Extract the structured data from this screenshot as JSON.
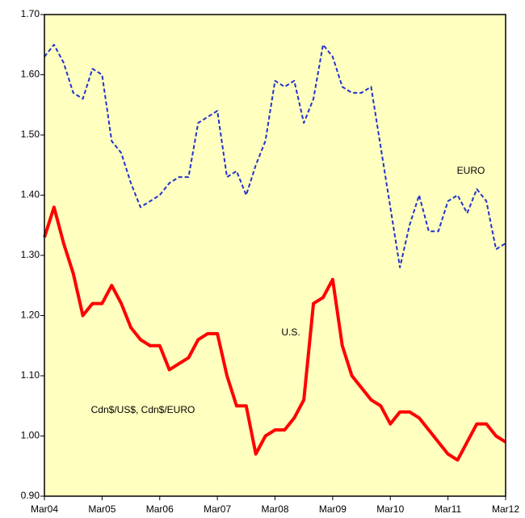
{
  "chart_data": {
    "type": "line",
    "categories": [
      "Mar04",
      null,
      null,
      null,
      null,
      null,
      "Mar05",
      null,
      null,
      null,
      null,
      null,
      "Mar06",
      null,
      null,
      null,
      null,
      null,
      "Mar07",
      null,
      null,
      null,
      null,
      null,
      "Mar08",
      null,
      null,
      null,
      null,
      null,
      "Mar09",
      null,
      null,
      null,
      null,
      null,
      "Mar10",
      null,
      null,
      null,
      null,
      null,
      "Mar11",
      null,
      null,
      null,
      null,
      null,
      "Mar12"
    ],
    "series": [
      {
        "name": "EURO",
        "color": "#2233cc",
        "dashed": true,
        "width": 2,
        "values": [
          1.63,
          1.65,
          1.62,
          1.57,
          1.56,
          1.61,
          1.6,
          1.49,
          1.47,
          1.42,
          1.38,
          1.39,
          1.4,
          1.42,
          1.43,
          1.43,
          1.52,
          1.53,
          1.54,
          1.43,
          1.44,
          1.4,
          1.45,
          1.49,
          1.59,
          1.58,
          1.59,
          1.52,
          1.56,
          1.65,
          1.63,
          1.58,
          1.57,
          1.57,
          1.58,
          1.48,
          1.38,
          1.28,
          1.35,
          1.4,
          1.34,
          1.34,
          1.39,
          1.4,
          1.37,
          1.41,
          1.39,
          1.31,
          1.32
        ]
      },
      {
        "name": "U.S.",
        "color": "#ff0000",
        "dashed": false,
        "width": 4,
        "values": [
          1.33,
          1.38,
          1.32,
          1.27,
          1.2,
          1.22,
          1.22,
          1.25,
          1.22,
          1.18,
          1.16,
          1.15,
          1.15,
          1.11,
          1.12,
          1.13,
          1.16,
          1.17,
          1.17,
          1.1,
          1.05,
          1.05,
          0.97,
          1.0,
          1.01,
          1.01,
          1.03,
          1.06,
          1.22,
          1.23,
          1.26,
          1.15,
          1.1,
          1.08,
          1.06,
          1.05,
          1.02,
          1.04,
          1.04,
          1.03,
          1.01,
          0.99,
          0.97,
          0.96,
          0.99,
          1.02,
          1.02,
          1.0,
          0.99
        ]
      }
    ],
    "annotations": [
      "EURO",
      "U.S.",
      "Cdn$/US$, Cdn$/EURO"
    ],
    "ylim": [
      0.9,
      1.7
    ],
    "yticks": [
      {
        "value": 0.9,
        "label": "0.90"
      },
      {
        "value": 1.0,
        "label": "1.00"
      },
      {
        "value": 1.1,
        "label": "1.10"
      },
      {
        "value": 1.2,
        "label": "1.20"
      },
      {
        "value": 1.3,
        "label": "1.30"
      },
      {
        "value": 1.4,
        "label": "1.40"
      },
      {
        "value": 1.5,
        "label": "1.50"
      },
      {
        "value": 1.6,
        "label": "1.60"
      },
      {
        "value": 1.7,
        "label": "1.70"
      }
    ],
    "background": "#ffffc0",
    "grid": false
  }
}
